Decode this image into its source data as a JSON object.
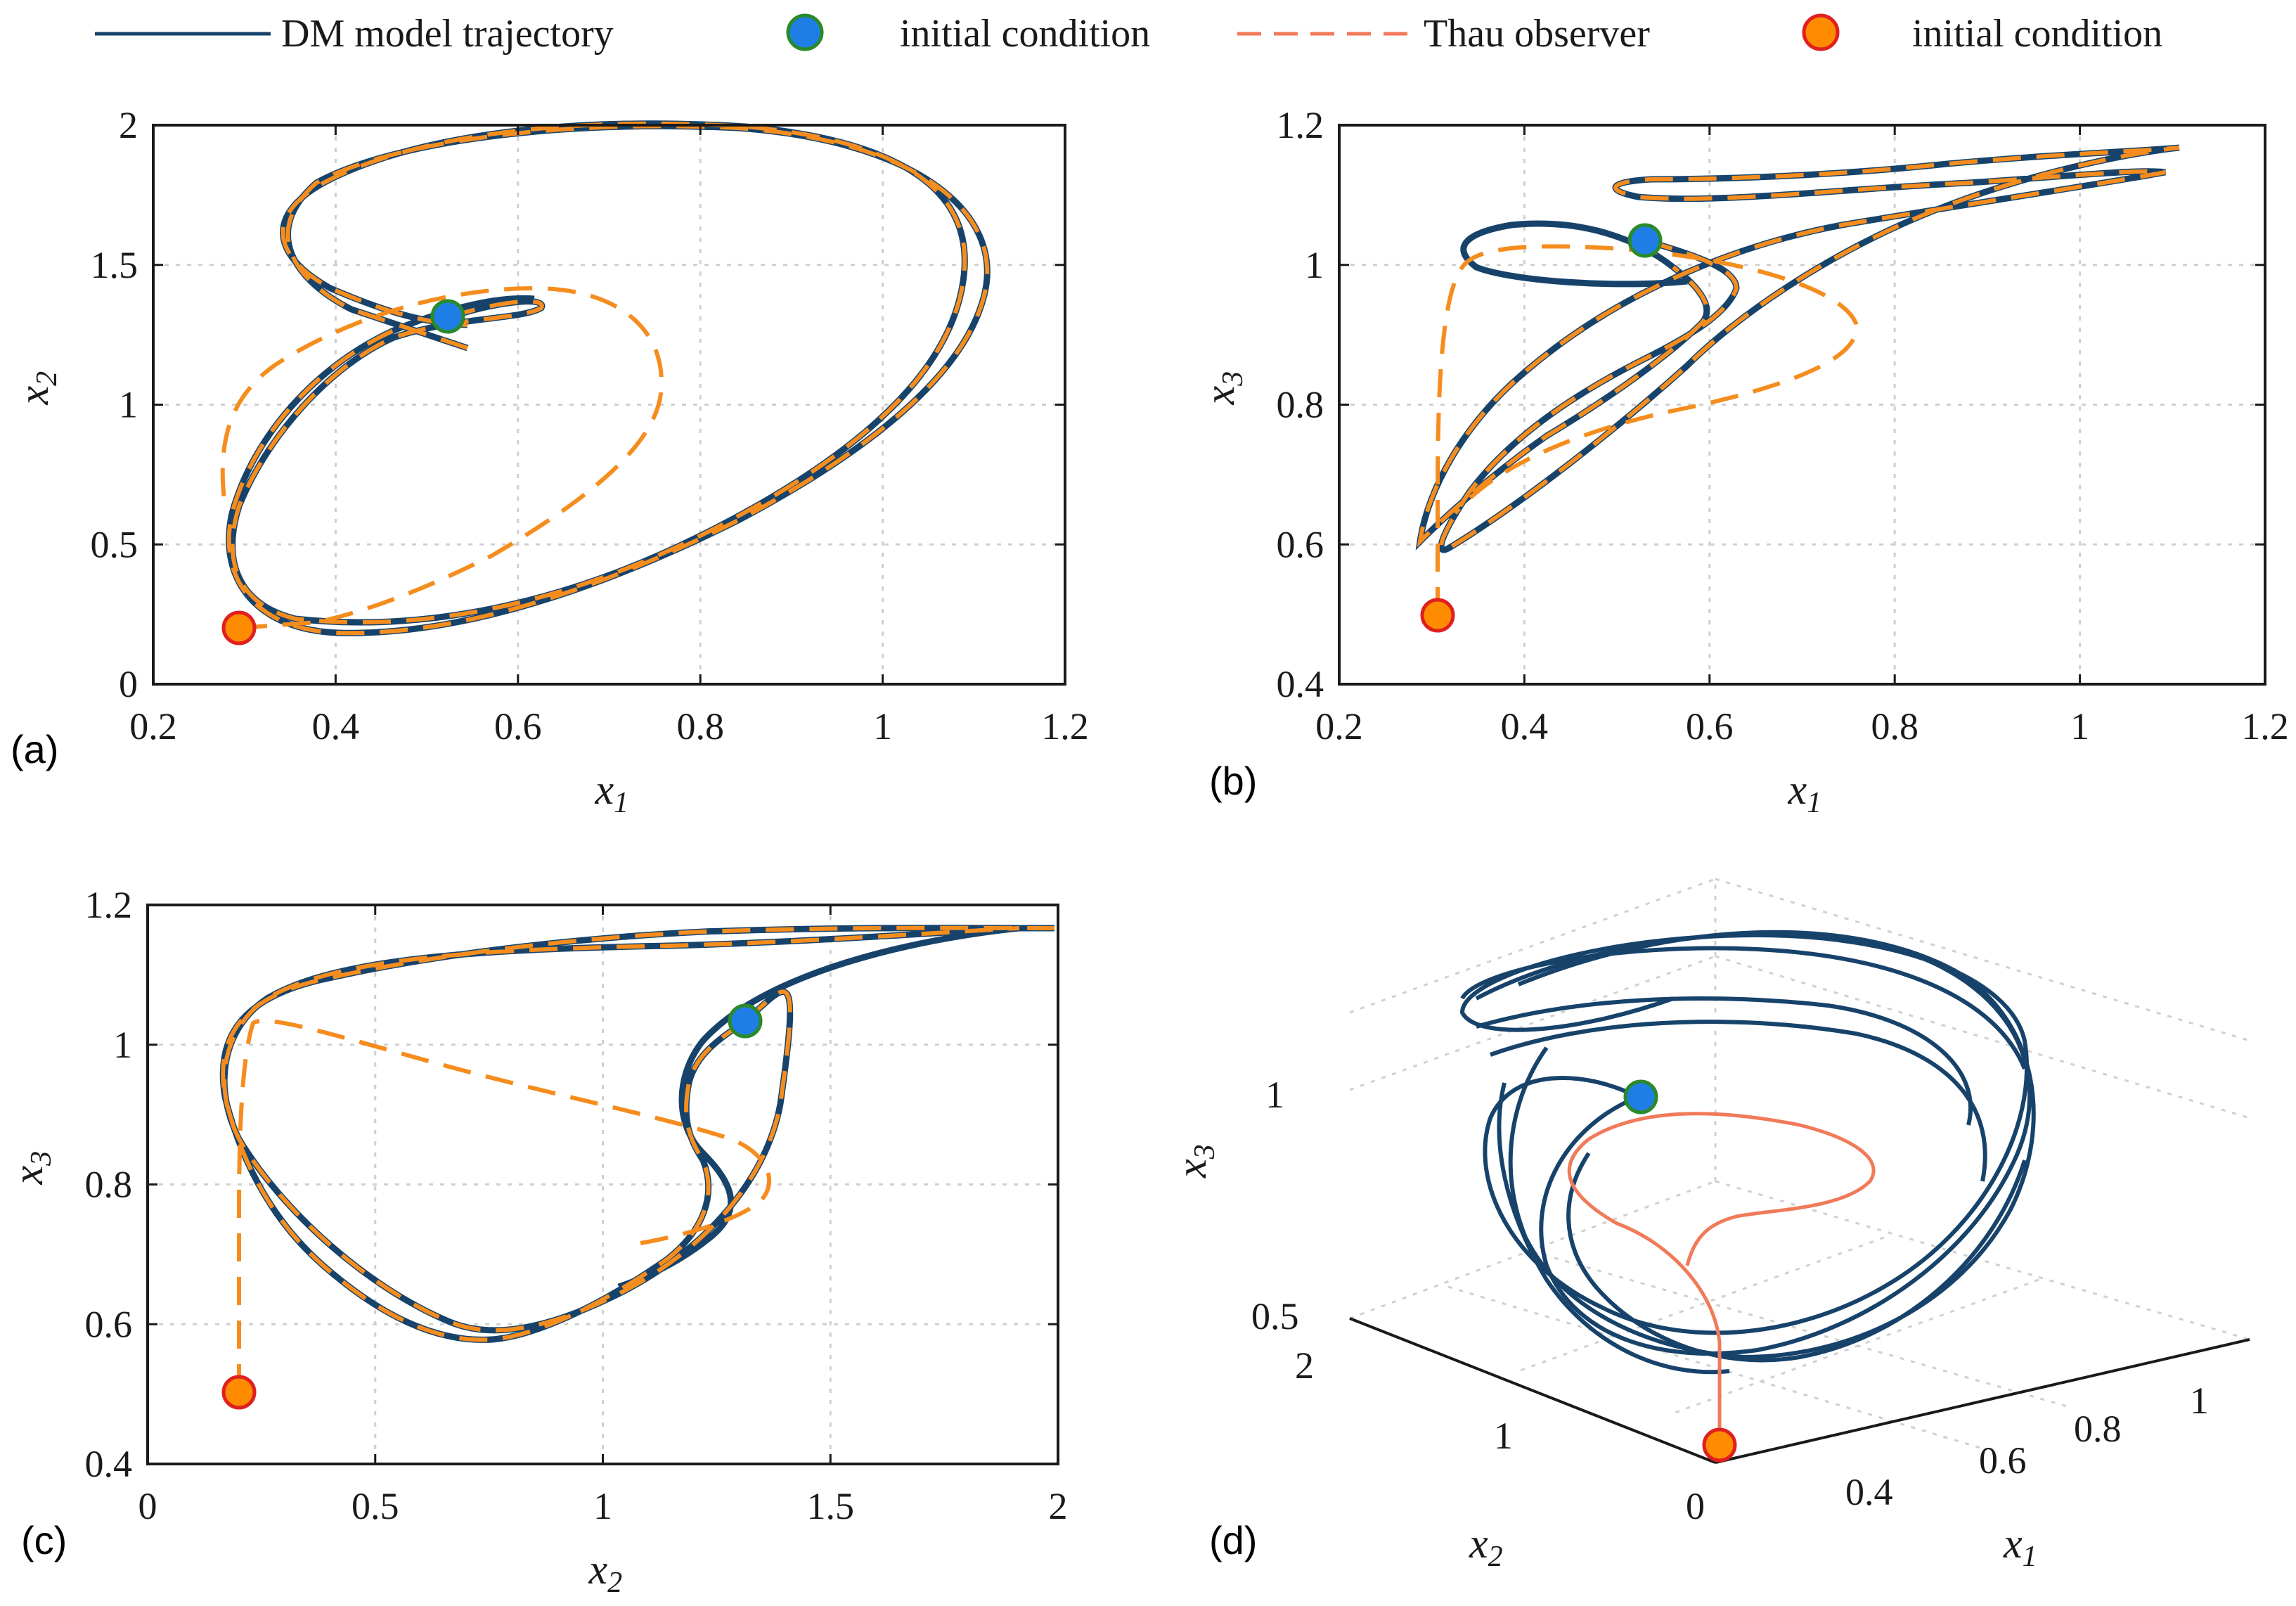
{
  "legend": {
    "items": [
      {
        "label": "DM model trajectory",
        "style": "solid",
        "color": "#17436b"
      },
      {
        "label": "initial condition",
        "marker": "circle",
        "fill": "#1f7ee6",
        "edge": "#2a8a2a"
      },
      {
        "label": "Thau observer",
        "style": "dashed",
        "color": "#f07a5a"
      },
      {
        "label": "initial condition",
        "marker": "circle",
        "fill": "#ff8c00",
        "edge": "#e02020"
      }
    ]
  },
  "colors": {
    "model": "#17436b",
    "observer": "#f58d1e",
    "observer3d": "#f07a5a",
    "grid": "#cccccc"
  },
  "chart_data": [
    {
      "panel": "(a)",
      "type": "line",
      "xlabel": "x1",
      "ylabel": "x2",
      "xlim": [
        0.2,
        1.2
      ],
      "ylim": [
        0,
        2
      ],
      "xticks": [
        "0.2",
        "0.4",
        "0.6",
        "0.8",
        "1",
        "1.2"
      ],
      "yticks": [
        "0",
        "0.5",
        "1",
        "1.5",
        "2"
      ],
      "model_ic": [
        0.53,
        1.31
      ],
      "observer_ic": [
        0.3,
        0.2
      ]
    },
    {
      "panel": "(b)",
      "type": "line",
      "xlabel": "x1",
      "ylabel": "x3",
      "xlim": [
        0.2,
        1.2
      ],
      "ylim": [
        0.4,
        1.2
      ],
      "xticks": [
        "0.2",
        "0.4",
        "0.6",
        "0.8",
        "1",
        "1.2"
      ],
      "yticks": [
        "0.4",
        "0.6",
        "0.8",
        "1",
        "1.2"
      ],
      "model_ic": [
        0.53,
        1.03
      ],
      "observer_ic": [
        0.3,
        0.5
      ]
    },
    {
      "panel": "(c)",
      "type": "line",
      "xlabel": "x2",
      "ylabel": "x3",
      "xlim": [
        0,
        2
      ],
      "ylim": [
        0.4,
        1.2
      ],
      "xticks": [
        "0",
        "0.5",
        "1",
        "1.5",
        "2"
      ],
      "yticks": [
        "0.4",
        "0.6",
        "0.8",
        "1",
        "1.2"
      ],
      "model_ic": [
        1.31,
        1.03
      ],
      "observer_ic": [
        0.2,
        0.5
      ]
    },
    {
      "panel": "(d)",
      "type": "line3d",
      "xlabel": "x1",
      "ylabel": "x2",
      "zlabel": "x3",
      "x1ticks": [
        "0.4",
        "0.6",
        "0.8",
        "1"
      ],
      "x2ticks": [
        "0",
        "1",
        "2"
      ],
      "x3ticks": [
        "0.5",
        "1"
      ]
    }
  ]
}
